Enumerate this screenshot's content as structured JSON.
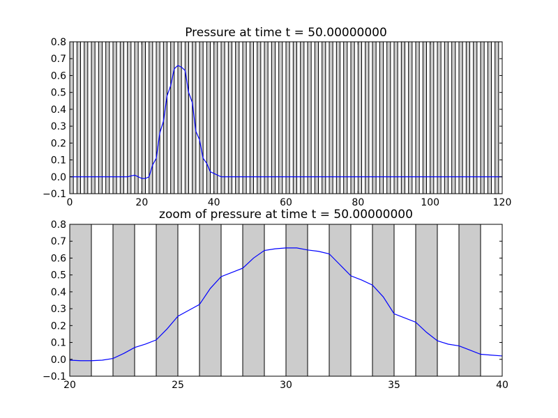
{
  "chart_data": [
    {
      "type": "line",
      "title": "Pressure at time t =    50.00000000",
      "xlabel": "",
      "ylabel": "",
      "xlim": [
        0,
        120
      ],
      "ylim": [
        -0.1,
        0.8
      ],
      "xticks": [
        0,
        20,
        40,
        60,
        80,
        100,
        120
      ],
      "xtick_labels": [
        "0",
        "20",
        "40",
        "60",
        "80",
        "100",
        "120"
      ],
      "yticks": [
        -0.1,
        0.0,
        0.1,
        0.2,
        0.3,
        0.4,
        0.5,
        0.6,
        0.7,
        0.8
      ],
      "ytick_labels": [
        "−0.1",
        "0.0",
        "0.1",
        "0.2",
        "0.3",
        "0.4",
        "0.5",
        "0.6",
        "0.7",
        "0.8"
      ],
      "grid": false,
      "shaded_bands": {
        "color": "#cccccc",
        "width": 1,
        "period": 2,
        "from": 0,
        "to": 120
      },
      "series": [
        {
          "color": "#0000ff",
          "x": [
            0,
            5,
            10,
            14,
            16,
            18,
            20,
            21,
            22,
            23,
            24,
            25,
            26,
            27,
            28,
            29,
            30,
            31,
            32,
            33,
            34,
            35,
            36,
            37,
            38,
            39,
            40,
            41,
            42,
            44,
            50,
            120
          ],
          "y": [
            0.0,
            0.0,
            0.0,
            0.0,
            0.0,
            0.01,
            -0.01,
            -0.01,
            0.0,
            0.07,
            0.11,
            0.26,
            0.33,
            0.48,
            0.54,
            0.64,
            0.66,
            0.65,
            0.63,
            0.5,
            0.44,
            0.27,
            0.22,
            0.11,
            0.08,
            0.03,
            0.02,
            0.01,
            0.0,
            0.0,
            0.0,
            0.0
          ]
        }
      ]
    },
    {
      "type": "line",
      "title": "zoom of pressure at time t =    50.00000000",
      "xlabel": "",
      "ylabel": "",
      "xlim": [
        20,
        40
      ],
      "ylim": [
        -0.1,
        0.8
      ],
      "xticks": [
        20,
        25,
        30,
        35,
        40
      ],
      "xtick_labels": [
        "20",
        "25",
        "30",
        "35",
        "40"
      ],
      "yticks": [
        -0.1,
        0.0,
        0.1,
        0.2,
        0.3,
        0.4,
        0.5,
        0.6,
        0.7,
        0.8
      ],
      "ytick_labels": [
        "−0.1",
        "0.0",
        "0.1",
        "0.2",
        "0.3",
        "0.4",
        "0.5",
        "0.6",
        "0.7",
        "0.8"
      ],
      "grid": false,
      "shaded_bands": {
        "color": "#cccccc",
        "width": 1,
        "period": 2,
        "from": 20,
        "to": 40
      },
      "series": [
        {
          "color": "#0000ff",
          "x": [
            20.0,
            20.5,
            21.0,
            21.5,
            22.0,
            22.5,
            23.0,
            23.5,
            24.0,
            24.5,
            25.0,
            25.5,
            26.0,
            26.5,
            27.0,
            27.5,
            28.0,
            28.5,
            29.0,
            29.5,
            30.0,
            30.5,
            31.0,
            31.5,
            32.0,
            32.5,
            33.0,
            33.5,
            34.0,
            34.5,
            35.0,
            35.5,
            36.0,
            36.5,
            37.0,
            37.5,
            38.0,
            38.5,
            39.0,
            39.5,
            40.0
          ],
          "y": [
            -0.005,
            -0.008,
            -0.008,
            -0.005,
            0.005,
            0.035,
            0.07,
            0.09,
            0.115,
            0.18,
            0.255,
            0.29,
            0.325,
            0.42,
            0.49,
            0.515,
            0.54,
            0.6,
            0.645,
            0.655,
            0.66,
            0.66,
            0.648,
            0.64,
            0.625,
            0.56,
            0.495,
            0.47,
            0.44,
            0.37,
            0.27,
            0.245,
            0.22,
            0.16,
            0.11,
            0.09,
            0.08,
            0.055,
            0.03,
            0.025,
            0.02
          ]
        }
      ]
    }
  ]
}
